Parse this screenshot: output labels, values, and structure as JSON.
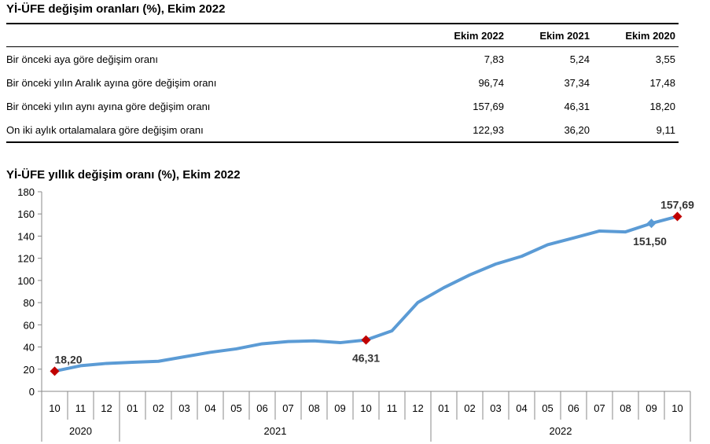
{
  "table": {
    "title": "Yİ-ÜFE değişim oranları (%), Ekim 2022",
    "headers": [
      "",
      "Ekim 2022",
      "Ekim 2021",
      "Ekim 2020"
    ],
    "rows": [
      {
        "label": "Bir önceki aya göre değişim oranı",
        "values": [
          "7,83",
          "5,24",
          "3,55"
        ]
      },
      {
        "label": "Bir önceki yılın Aralık ayına göre değişim oranı",
        "values": [
          "96,74",
          "37,34",
          "17,48"
        ]
      },
      {
        "label": "Bir önceki yılın aynı ayına göre değişim oranı",
        "values": [
          "157,69",
          "46,31",
          "18,20"
        ]
      },
      {
        "label": "On iki aylık ortalamalara göre değişim oranı",
        "values": [
          "122,93",
          "36,20",
          "9,11"
        ]
      }
    ]
  },
  "chart_data": {
    "type": "line",
    "title": "Yİ-ÜFE yıllık değişim oranı (%), Ekim 2022",
    "xlabel": "",
    "ylabel": "",
    "ylim": [
      0,
      180
    ],
    "yticks": [
      0,
      20,
      40,
      60,
      80,
      100,
      120,
      140,
      160,
      180
    ],
    "grid": false,
    "legend": "none",
    "categories": [
      "10",
      "11",
      "12",
      "01",
      "02",
      "03",
      "04",
      "05",
      "06",
      "07",
      "08",
      "09",
      "10",
      "11",
      "12",
      "01",
      "02",
      "03",
      "04",
      "05",
      "06",
      "07",
      "08",
      "09",
      "10"
    ],
    "year_groups": [
      {
        "label": "2020",
        "start": 0,
        "end": 2
      },
      {
        "label": "2021",
        "start": 3,
        "end": 14
      },
      {
        "label": "2022",
        "start": 15,
        "end": 24
      }
    ],
    "series": [
      {
        "color": "#5b9bd5",
        "values": [
          18.2,
          23.1,
          25.2,
          26.2,
          27.1,
          31.2,
          35.2,
          38.3,
          42.9,
          44.9,
          45.5,
          43.9,
          46.31,
          54.6,
          80.2,
          93.5,
          105.0,
          114.8,
          121.8,
          132.2,
          138.3,
          144.6,
          143.8,
          151.5,
          157.69
        ]
      }
    ],
    "annotations": [
      {
        "index": 0,
        "text": "18,20",
        "marker": "diamond",
        "color": "#c00000",
        "position": "above"
      },
      {
        "index": 12,
        "text": "46,31",
        "marker": "diamond",
        "color": "#c00000",
        "position": "below"
      },
      {
        "index": 23,
        "text": "151,50",
        "marker": "diamond",
        "color": "#5b9bd5",
        "position": "below"
      },
      {
        "index": 24,
        "text": "157,69",
        "marker": "diamond",
        "color": "#c00000",
        "position": "above"
      }
    ]
  }
}
